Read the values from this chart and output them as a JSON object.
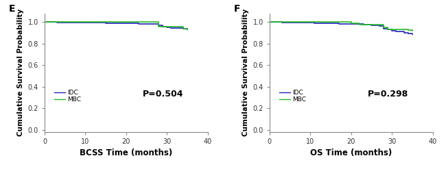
{
  "panel_E": {
    "label": "E",
    "xlabel": "BCSS Time (months)",
    "ylabel": "Cumulative Survival Probability",
    "p_value": "P=0.504",
    "xlim": [
      0,
      40
    ],
    "ylim": [
      -0.02,
      1.08
    ],
    "yticks": [
      0.0,
      0.2,
      0.4,
      0.6,
      0.8,
      1.0
    ],
    "xticks": [
      0,
      10,
      20,
      30,
      40
    ],
    "IDC": {
      "color": "#2222BB",
      "times": [
        0,
        1,
        3,
        5,
        7,
        9,
        11,
        13,
        15,
        17,
        19,
        20,
        21,
        22,
        23,
        24,
        25,
        26,
        27,
        28,
        29,
        30,
        31,
        32,
        33,
        34,
        35
      ],
      "surv": [
        1.0,
        0.999,
        0.998,
        0.997,
        0.996,
        0.995,
        0.994,
        0.993,
        0.992,
        0.991,
        0.99,
        0.989,
        0.988,
        0.987,
        0.986,
        0.985,
        0.984,
        0.983,
        0.98,
        0.968,
        0.958,
        0.952,
        0.948,
        0.945,
        0.942,
        0.938,
        0.93
      ]
    },
    "MBC": {
      "color": "#22BB22",
      "times": [
        0,
        10,
        19,
        27,
        28,
        34,
        35
      ],
      "surv": [
        1.0,
        1.0,
        1.0,
        1.0,
        0.955,
        0.94,
        0.93
      ]
    }
  },
  "panel_F": {
    "label": "F",
    "xlabel": "OS Time (months)",
    "ylabel": "Cumulative Survival Probability",
    "p_value": "P=0.298",
    "xlim": [
      0,
      40
    ],
    "ylim": [
      -0.02,
      1.08
    ],
    "yticks": [
      0.0,
      0.2,
      0.4,
      0.6,
      0.8,
      1.0
    ],
    "xticks": [
      0,
      10,
      20,
      30,
      40
    ],
    "IDC": {
      "color": "#2222BB",
      "times": [
        0,
        1,
        3,
        5,
        7,
        9,
        11,
        13,
        15,
        17,
        19,
        21,
        23,
        25,
        27,
        28,
        29,
        30,
        31,
        32,
        33,
        34,
        35
      ],
      "surv": [
        1.0,
        0.999,
        0.998,
        0.997,
        0.995,
        0.993,
        0.991,
        0.989,
        0.987,
        0.985,
        0.983,
        0.98,
        0.976,
        0.972,
        0.966,
        0.94,
        0.93,
        0.922,
        0.916,
        0.91,
        0.903,
        0.897,
        0.89
      ]
    },
    "MBC": {
      "color": "#22BB22",
      "times": [
        0,
        10,
        20,
        22,
        27,
        28,
        29,
        34,
        35
      ],
      "surv": [
        1.0,
        1.0,
        0.99,
        0.975,
        0.975,
        0.95,
        0.935,
        0.925,
        0.92
      ]
    }
  },
  "legend_fontsize": 6.5,
  "xlabel_fontsize": 8.5,
  "ylabel_fontsize": 7.5,
  "tick_fontsize": 7,
  "pvalue_fontsize": 9,
  "linewidth": 1.2,
  "panel_label_fontsize": 10,
  "spine_color": "#888888"
}
